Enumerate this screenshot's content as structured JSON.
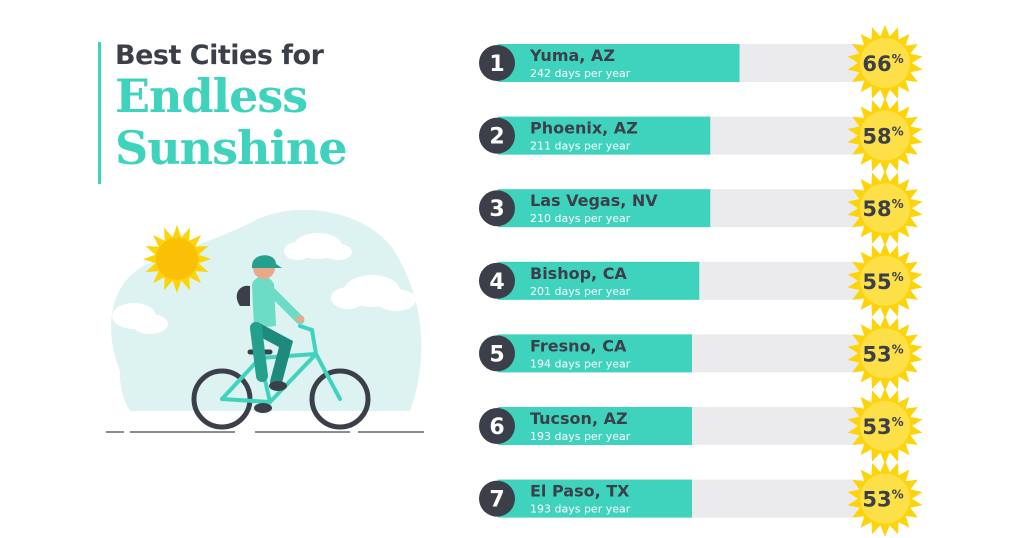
{
  "title": {
    "line1": "Best Cities for",
    "line2": "Endless",
    "line3": "Sunshine"
  },
  "colors": {
    "accent": "#3fd3bd",
    "track": "#ebebee",
    "dark": "#3b3f4a",
    "sun": "#fdd30a"
  },
  "chart_data": {
    "type": "bar",
    "orientation": "horizontal",
    "value_unit": "%",
    "series": [
      {
        "values": [
          66,
          58,
          58,
          55,
          53,
          53,
          53
        ]
      }
    ],
    "rows": [
      {
        "rank": "1",
        "city": "Yuma, AZ",
        "days": "242 days per year",
        "value": 66
      },
      {
        "rank": "2",
        "city": "Phoenix, AZ",
        "days": "211 days per year",
        "value": 58
      },
      {
        "rank": "3",
        "city": "Las Vegas, NV",
        "days": "210 days per year",
        "value": 58
      },
      {
        "rank": "4",
        "city": "Bishop, CA",
        "days": "201 days per year",
        "value": 55
      },
      {
        "rank": "5",
        "city": "Fresno, CA",
        "days": "194 days per year",
        "value": 53
      },
      {
        "rank": "6",
        "city": "Tucson, AZ",
        "days": "193 days per year",
        "value": 53
      },
      {
        "rank": "7",
        "city": "El Paso, TX",
        "days": "193 days per year",
        "value": 53
      }
    ]
  }
}
